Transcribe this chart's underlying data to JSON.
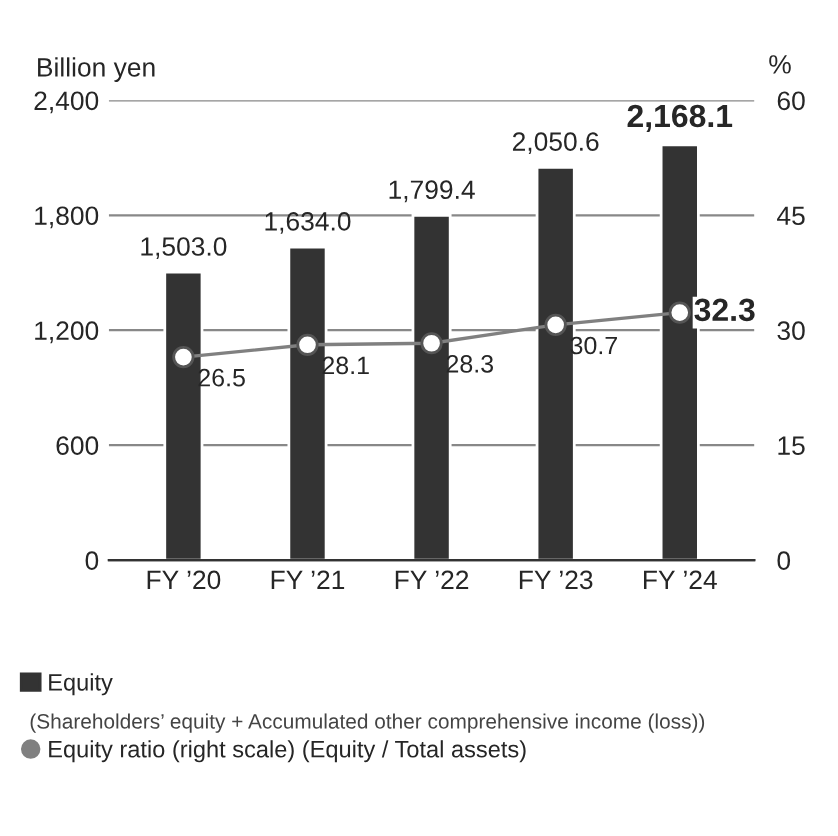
{
  "chart_data": {
    "type": "bar",
    "categories": [
      "FY ’20",
      "FY ’21",
      "FY ’22",
      "FY ’23",
      "FY ’24"
    ],
    "ylabel": "Billion yen",
    "y2label": "%",
    "ylim": [
      0,
      2400
    ],
    "yticks": [
      {
        "value": 0,
        "label": "0"
      },
      {
        "value": 600,
        "label": "600"
      },
      {
        "value": 1200,
        "label": "1,200"
      },
      {
        "value": 1800,
        "label": "1,800"
      },
      {
        "value": 2400,
        "label": "2,400"
      }
    ],
    "y2lim": [
      0,
      60
    ],
    "y2ticks": [
      0,
      15,
      30,
      45,
      60
    ],
    "grid": "y",
    "legend": "bottom",
    "series": [
      {
        "name": "Equity",
        "color": "#333333",
        "values": [
          1503.0,
          1634.0,
          1799.4,
          2050.6,
          2168.1
        ],
        "value_labels": [
          "1,503.0",
          "1,634.0",
          "1,799.4",
          "2,050.6",
          "2,168.1"
        ]
      },
      {
        "name": "Equity ratio (right scale) (Equity / Total assets)",
        "type": "line",
        "axis": "y2",
        "color": "#808080",
        "marker": "circle",
        "line_style": "solid",
        "values": [
          26.5,
          28.1,
          28.3,
          30.7,
          32.3
        ],
        "value_labels": [
          "26.5",
          "28.1",
          "28.3",
          "30.7",
          "32.3"
        ]
      }
    ],
    "annotations": [
      "(Shareholders’ equity + Accumulated other comprehensive income (loss))"
    ]
  }
}
